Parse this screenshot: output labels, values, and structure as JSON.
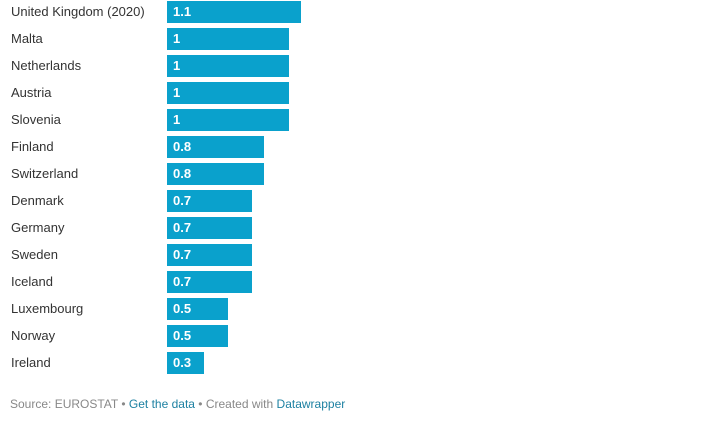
{
  "chart_data": {
    "type": "bar",
    "orientation": "horizontal",
    "categories": [
      "United Kingdom (2020)",
      "Malta",
      "Netherlands",
      "Austria",
      "Slovenia",
      "Finland",
      "Switzerland",
      "Denmark",
      "Germany",
      "Sweden",
      "Iceland",
      "Luxembourg",
      "Norway",
      "Ireland"
    ],
    "values": [
      1.1,
      1,
      1,
      1,
      1,
      0.8,
      0.8,
      0.7,
      0.7,
      0.7,
      0.7,
      0.5,
      0.5,
      0.3
    ],
    "value_labels": [
      "1.1",
      "1",
      "1",
      "1",
      "1",
      "0.8",
      "0.8",
      "0.7",
      "0.7",
      "0.7",
      "0.7",
      "0.5",
      "0.5",
      "0.3"
    ],
    "xlim": [
      0,
      1.1
    ],
    "bar_color": "#0aa1cc",
    "grid": false
  },
  "footer": {
    "source_text": "Source: EUROSTAT",
    "separator": " • ",
    "get_data_label": "Get the data",
    "created_with_text": "Created with",
    "datawrapper_label": "Datawrapper",
    "link_color": "#1d81a2"
  }
}
